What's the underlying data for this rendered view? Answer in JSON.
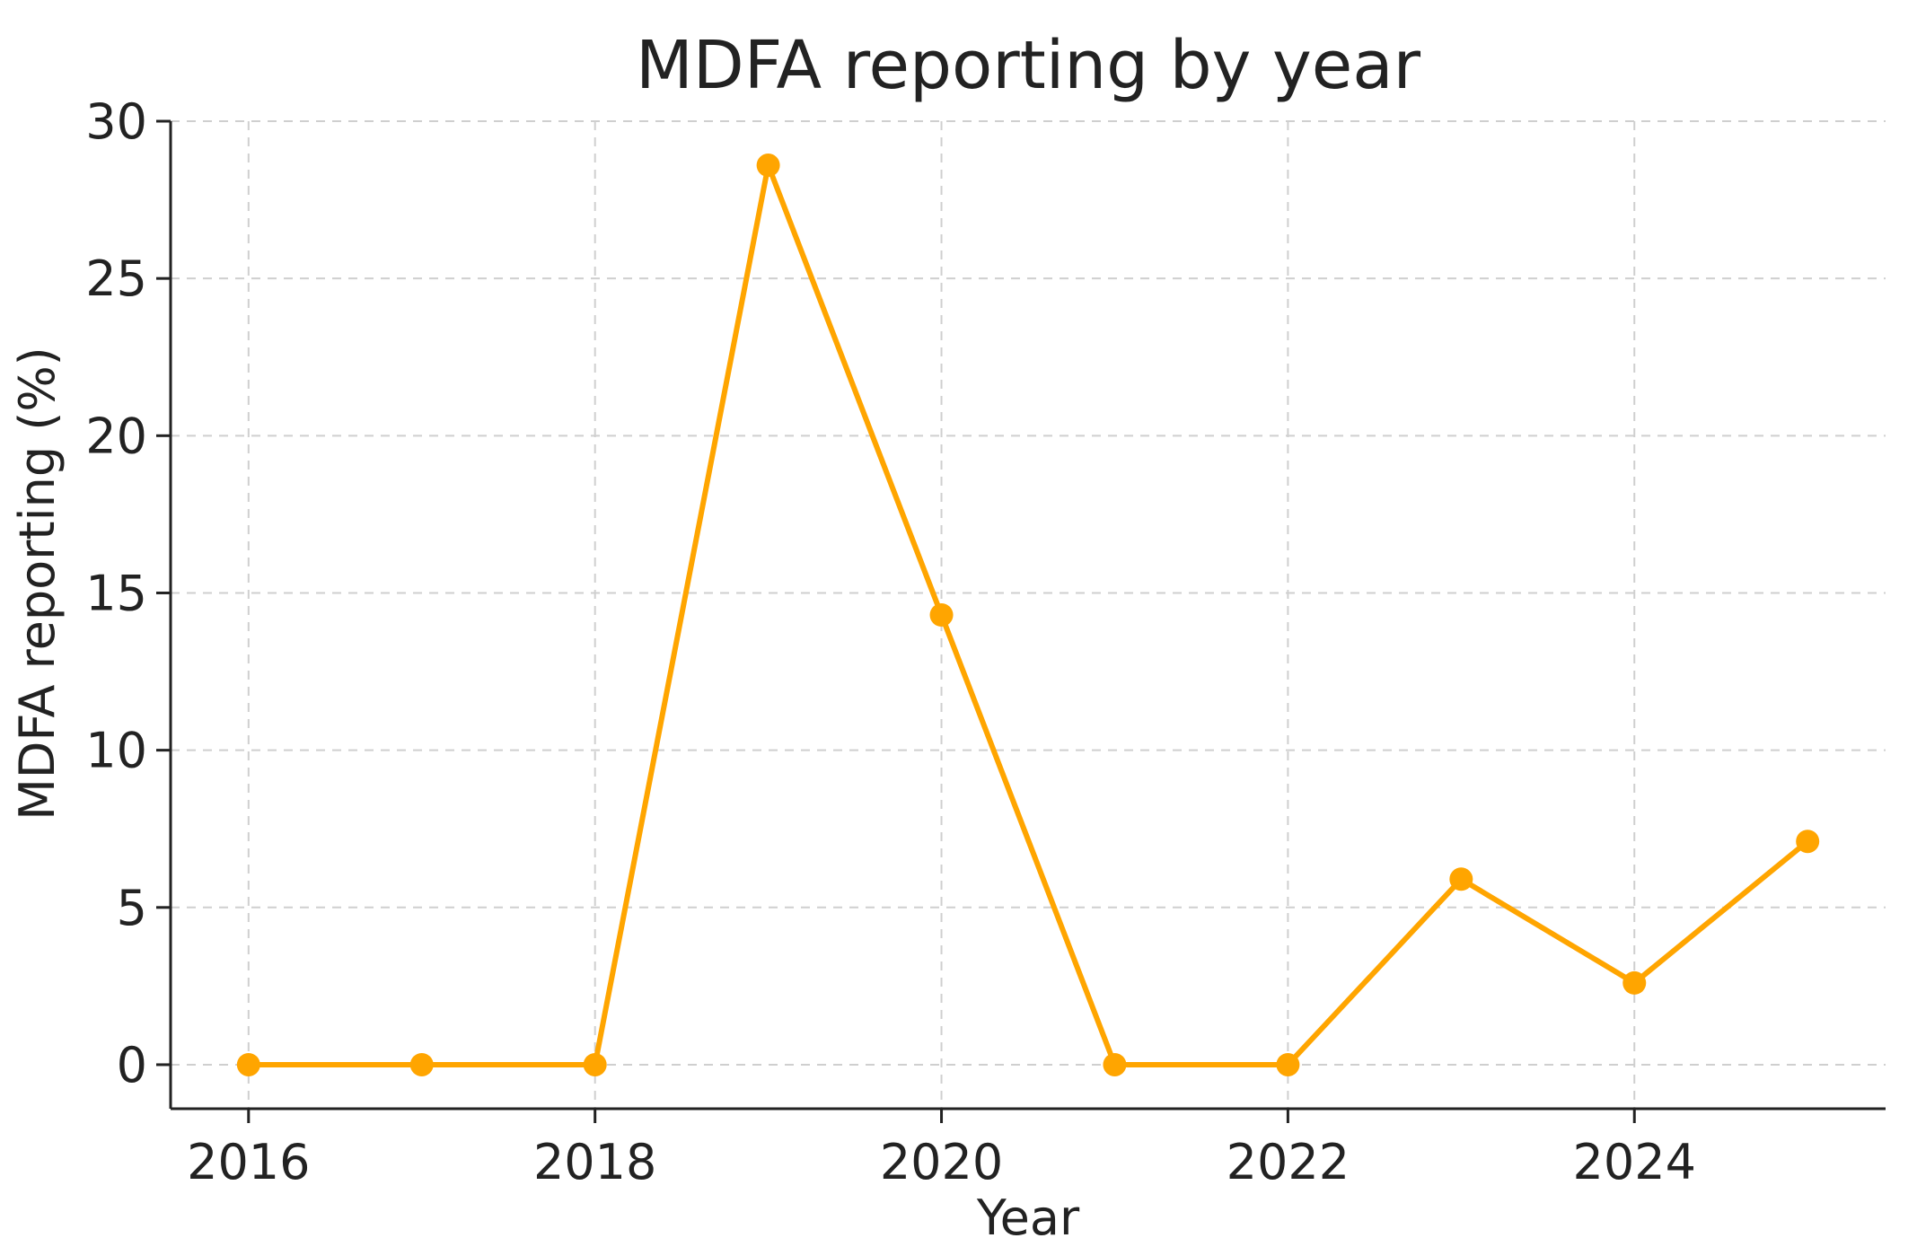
{
  "chart_data": {
    "type": "line",
    "title": "MDFA reporting by year",
    "xlabel": "Year",
    "ylabel": "MDFA reporting (%)",
    "x": [
      2016,
      2017,
      2018,
      2019,
      2020,
      2021,
      2022,
      2023,
      2024,
      2025
    ],
    "series": [
      {
        "values": [
          0,
          0,
          0,
          28.6,
          14.3,
          0,
          0,
          5.9,
          2.6,
          7.1
        ]
      }
    ],
    "xlim": [
      2015.55,
      2025.45
    ],
    "ylim": [
      -1.4,
      30
    ],
    "xticks": [
      "2016",
      "2018",
      "2020",
      "2022",
      "2024"
    ],
    "yticks": [
      "0",
      "5",
      "10",
      "15",
      "20",
      "25",
      "30"
    ],
    "grid": true,
    "line_color": "#FFA500",
    "marker": "circle"
  }
}
